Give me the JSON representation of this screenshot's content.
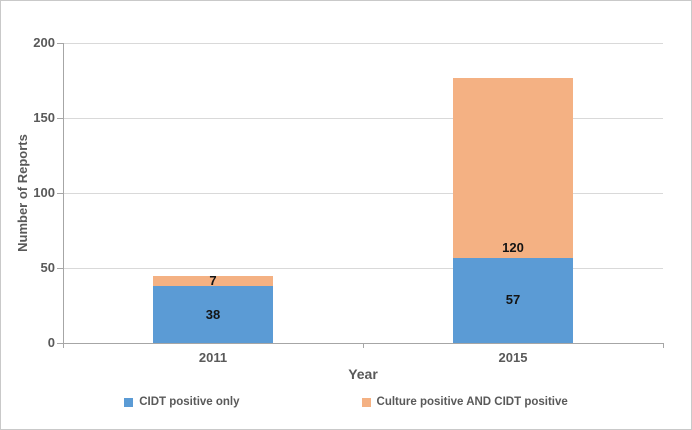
{
  "chart_data": {
    "type": "bar",
    "stacked": true,
    "categories": [
      "2011",
      "2015"
    ],
    "series": [
      {
        "name": "CIDT positive only",
        "color": "#5B9BD5",
        "values": [
          38,
          57
        ],
        "label_position": "center"
      },
      {
        "name": "Culture positive AND CIDT positive",
        "color": "#F4B183",
        "values": [
          7,
          120
        ],
        "label_position": "inside-base"
      }
    ],
    "title": "",
    "xlabel": "Year",
    "ylabel": "Number of Reports",
    "ylim": [
      0,
      200
    ],
    "yticks": [
      0,
      50,
      100,
      150,
      200
    ],
    "grid": true,
    "legend_position": "bottom"
  },
  "colors": {
    "axis_text": "#595959",
    "data_label_text": "#141414",
    "gridline": "#D9D9D9",
    "axis_line": "#A6A6A6",
    "background": "#FFFFFF"
  }
}
